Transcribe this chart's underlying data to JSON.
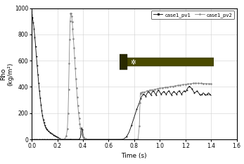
{
  "title": "",
  "xlabel": "Time (s)",
  "ylabel": "Rho\n(kg/m²)",
  "xlim": [
    0.0,
    1.6
  ],
  "ylim": [
    0,
    1000
  ],
  "xticks": [
    0.0,
    0.2,
    0.4,
    0.6,
    0.8,
    1.0,
    1.2,
    1.4,
    1.6
  ],
  "yticks": [
    0,
    200,
    400,
    600,
    800,
    1000
  ],
  "legend_labels": [
    "case1_pv1",
    "case1_pv2"
  ],
  "pv1_color": "black",
  "pv2_color": "#888888",
  "grid_color": "#d0d0d0",
  "background_color": "white",
  "inset_bg": "#0000cc",
  "inset_nozzle": "#4a4a00",
  "inset_text_color": "white",
  "pv1_data": [
    [
      0.0,
      950
    ],
    [
      0.003,
      940
    ],
    [
      0.006,
      930
    ],
    [
      0.009,
      910
    ],
    [
      0.012,
      890
    ],
    [
      0.015,
      870
    ],
    [
      0.018,
      840
    ],
    [
      0.021,
      810
    ],
    [
      0.024,
      780
    ],
    [
      0.027,
      750
    ],
    [
      0.03,
      710
    ],
    [
      0.033,
      670
    ],
    [
      0.036,
      635
    ],
    [
      0.039,
      600
    ],
    [
      0.042,
      565
    ],
    [
      0.045,
      530
    ],
    [
      0.048,
      495
    ],
    [
      0.051,
      460
    ],
    [
      0.054,
      430
    ],
    [
      0.057,
      400
    ],
    [
      0.06,
      370
    ],
    [
      0.063,
      340
    ],
    [
      0.066,
      315
    ],
    [
      0.069,
      290
    ],
    [
      0.072,
      265
    ],
    [
      0.075,
      240
    ],
    [
      0.078,
      220
    ],
    [
      0.081,
      200
    ],
    [
      0.084,
      182
    ],
    [
      0.087,
      165
    ],
    [
      0.09,
      150
    ],
    [
      0.093,
      138
    ],
    [
      0.096,
      127
    ],
    [
      0.099,
      117
    ],
    [
      0.102,
      108
    ],
    [
      0.105,
      100
    ],
    [
      0.108,
      93
    ],
    [
      0.111,
      87
    ],
    [
      0.114,
      82
    ],
    [
      0.117,
      77
    ],
    [
      0.12,
      73
    ],
    [
      0.125,
      67
    ],
    [
      0.13,
      62
    ],
    [
      0.135,
      58
    ],
    [
      0.14,
      54
    ],
    [
      0.145,
      50
    ],
    [
      0.15,
      47
    ],
    [
      0.155,
      44
    ],
    [
      0.16,
      41
    ],
    [
      0.165,
      38
    ],
    [
      0.17,
      35
    ],
    [
      0.175,
      32
    ],
    [
      0.18,
      29
    ],
    [
      0.185,
      26
    ],
    [
      0.19,
      23
    ],
    [
      0.195,
      20
    ],
    [
      0.2,
      17
    ],
    [
      0.21,
      12
    ],
    [
      0.22,
      7
    ],
    [
      0.23,
      3
    ],
    [
      0.24,
      1
    ],
    [
      0.26,
      0.5
    ],
    [
      0.3,
      0.3
    ],
    [
      0.35,
      0.3
    ],
    [
      0.37,
      0.5
    ],
    [
      0.38,
      15
    ],
    [
      0.385,
      60
    ],
    [
      0.39,
      90
    ],
    [
      0.395,
      75
    ],
    [
      0.4,
      40
    ],
    [
      0.405,
      15
    ],
    [
      0.41,
      4
    ],
    [
      0.42,
      0.5
    ],
    [
      0.5,
      0.3
    ],
    [
      0.6,
      0.3
    ],
    [
      0.65,
      0.3
    ],
    [
      0.7,
      0.5
    ],
    [
      0.72,
      5
    ],
    [
      0.74,
      20
    ],
    [
      0.76,
      55
    ],
    [
      0.78,
      110
    ],
    [
      0.8,
      170
    ],
    [
      0.82,
      230
    ],
    [
      0.84,
      280
    ],
    [
      0.85,
      310
    ],
    [
      0.86,
      330
    ],
    [
      0.87,
      345
    ],
    [
      0.88,
      340
    ],
    [
      0.89,
      330
    ],
    [
      0.9,
      350
    ],
    [
      0.91,
      365
    ],
    [
      0.92,
      355
    ],
    [
      0.93,
      340
    ],
    [
      0.94,
      360
    ],
    [
      0.95,
      370
    ],
    [
      0.96,
      355
    ],
    [
      0.97,
      340
    ],
    [
      0.98,
      365
    ],
    [
      0.99,
      375
    ],
    [
      1.0,
      360
    ],
    [
      1.01,
      345
    ],
    [
      1.02,
      355
    ],
    [
      1.03,
      365
    ],
    [
      1.04,
      355
    ],
    [
      1.05,
      345
    ],
    [
      1.06,
      360
    ],
    [
      1.07,
      370
    ],
    [
      1.08,
      355
    ],
    [
      1.09,
      340
    ],
    [
      1.1,
      355
    ],
    [
      1.11,
      365
    ],
    [
      1.12,
      355
    ],
    [
      1.13,
      345
    ],
    [
      1.14,
      360
    ],
    [
      1.15,
      370
    ],
    [
      1.16,
      358
    ],
    [
      1.17,
      345
    ],
    [
      1.18,
      360
    ],
    [
      1.19,
      370
    ],
    [
      1.2,
      360
    ],
    [
      1.21,
      378
    ],
    [
      1.22,
      395
    ],
    [
      1.23,
      405
    ],
    [
      1.24,
      398
    ],
    [
      1.25,
      385
    ],
    [
      1.26,
      370
    ],
    [
      1.27,
      355
    ],
    [
      1.28,
      360
    ],
    [
      1.29,
      368
    ],
    [
      1.3,
      358
    ],
    [
      1.31,
      345
    ],
    [
      1.32,
      335
    ],
    [
      1.33,
      345
    ],
    [
      1.34,
      355
    ],
    [
      1.35,
      345
    ],
    [
      1.36,
      335
    ],
    [
      1.37,
      345
    ],
    [
      1.38,
      355
    ],
    [
      1.39,
      345
    ],
    [
      1.4,
      335
    ]
  ],
  "pv2_data": [
    [
      0.0,
      0.5
    ],
    [
      0.02,
      0.5
    ],
    [
      0.04,
      0.5
    ],
    [
      0.06,
      0.5
    ],
    [
      0.08,
      0.5
    ],
    [
      0.1,
      0.5
    ],
    [
      0.12,
      0.5
    ],
    [
      0.14,
      0.5
    ],
    [
      0.16,
      0.5
    ],
    [
      0.18,
      0.5
    ],
    [
      0.2,
      0.5
    ],
    [
      0.21,
      0.5
    ],
    [
      0.22,
      0.5
    ],
    [
      0.23,
      0.5
    ],
    [
      0.24,
      0.8
    ],
    [
      0.25,
      2
    ],
    [
      0.26,
      8
    ],
    [
      0.27,
      25
    ],
    [
      0.278,
      80
    ],
    [
      0.284,
      200
    ],
    [
      0.288,
      380
    ],
    [
      0.292,
      580
    ],
    [
      0.296,
      760
    ],
    [
      0.3,
      900
    ],
    [
      0.304,
      960
    ],
    [
      0.308,
      960
    ],
    [
      0.312,
      940
    ],
    [
      0.316,
      895
    ],
    [
      0.32,
      840
    ],
    [
      0.325,
      770
    ],
    [
      0.33,
      700
    ],
    [
      0.335,
      620
    ],
    [
      0.34,
      540
    ],
    [
      0.345,
      460
    ],
    [
      0.35,
      390
    ],
    [
      0.355,
      320
    ],
    [
      0.36,
      260
    ],
    [
      0.365,
      205
    ],
    [
      0.37,
      160
    ],
    [
      0.375,
      120
    ],
    [
      0.38,
      88
    ],
    [
      0.385,
      63
    ],
    [
      0.39,
      44
    ],
    [
      0.395,
      30
    ],
    [
      0.4,
      20
    ],
    [
      0.405,
      13
    ],
    [
      0.41,
      8
    ],
    [
      0.42,
      4
    ],
    [
      0.43,
      2
    ],
    [
      0.44,
      1
    ],
    [
      0.46,
      0.5
    ],
    [
      0.5,
      0.3
    ],
    [
      0.6,
      0.3
    ],
    [
      0.7,
      0.3
    ],
    [
      0.8,
      0.3
    ],
    [
      0.82,
      0.3
    ],
    [
      0.83,
      0.3
    ],
    [
      0.84,
      100
    ],
    [
      0.845,
      280
    ],
    [
      0.848,
      350
    ],
    [
      0.85,
      355
    ],
    [
      0.86,
      358
    ],
    [
      0.88,
      362
    ],
    [
      0.9,
      368
    ],
    [
      0.92,
      375
    ],
    [
      0.94,
      378
    ],
    [
      0.96,
      382
    ],
    [
      0.98,
      386
    ],
    [
      1.0,
      390
    ],
    [
      1.02,
      393
    ],
    [
      1.04,
      396
    ],
    [
      1.06,
      399
    ],
    [
      1.08,
      402
    ],
    [
      1.1,
      405
    ],
    [
      1.12,
      408
    ],
    [
      1.14,
      411
    ],
    [
      1.16,
      414
    ],
    [
      1.18,
      417
    ],
    [
      1.2,
      420
    ],
    [
      1.22,
      422
    ],
    [
      1.24,
      425
    ],
    [
      1.26,
      427
    ],
    [
      1.28,
      428
    ],
    [
      1.3,
      428
    ],
    [
      1.32,
      427
    ],
    [
      1.34,
      426
    ],
    [
      1.36,
      425
    ],
    [
      1.38,
      424
    ],
    [
      1.4,
      423
    ]
  ]
}
